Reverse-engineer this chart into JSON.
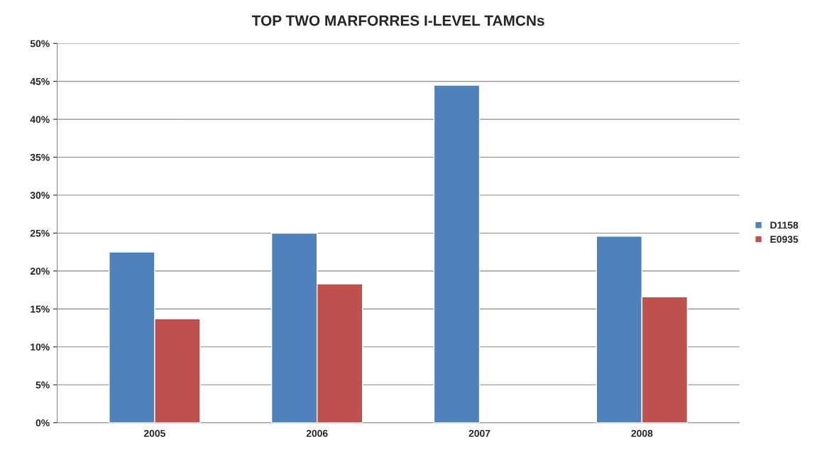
{
  "chart_data": {
    "type": "bar",
    "title": "TOP TWO MARFORRES I-LEVEL TAMCNs",
    "categories": [
      "2005",
      "2006",
      "2007",
      "2008"
    ],
    "series": [
      {
        "name": "D1158",
        "color": "#4f81bd",
        "values": [
          22.5,
          25,
          44.5,
          24.6
        ]
      },
      {
        "name": "E0935",
        "color": "#c0504d",
        "values": [
          13.7,
          18.3,
          null,
          16.6
        ]
      }
    ],
    "ylim": [
      0,
      50
    ],
    "yticks": [
      {
        "value": 0,
        "label": "0%"
      },
      {
        "value": 5,
        "label": "5%"
      },
      {
        "value": 10,
        "label": "10%"
      },
      {
        "value": 15,
        "label": "15%"
      },
      {
        "value": 20,
        "label": "20%"
      },
      {
        "value": 25,
        "label": "25%"
      },
      {
        "value": 30,
        "label": "30%"
      },
      {
        "value": 35,
        "label": "35%"
      },
      {
        "value": 40,
        "label": "40%"
      },
      {
        "value": 45,
        "label": "45%"
      },
      {
        "value": 50,
        "label": "50%"
      }
    ],
    "grid": "y",
    "legend": "right"
  }
}
